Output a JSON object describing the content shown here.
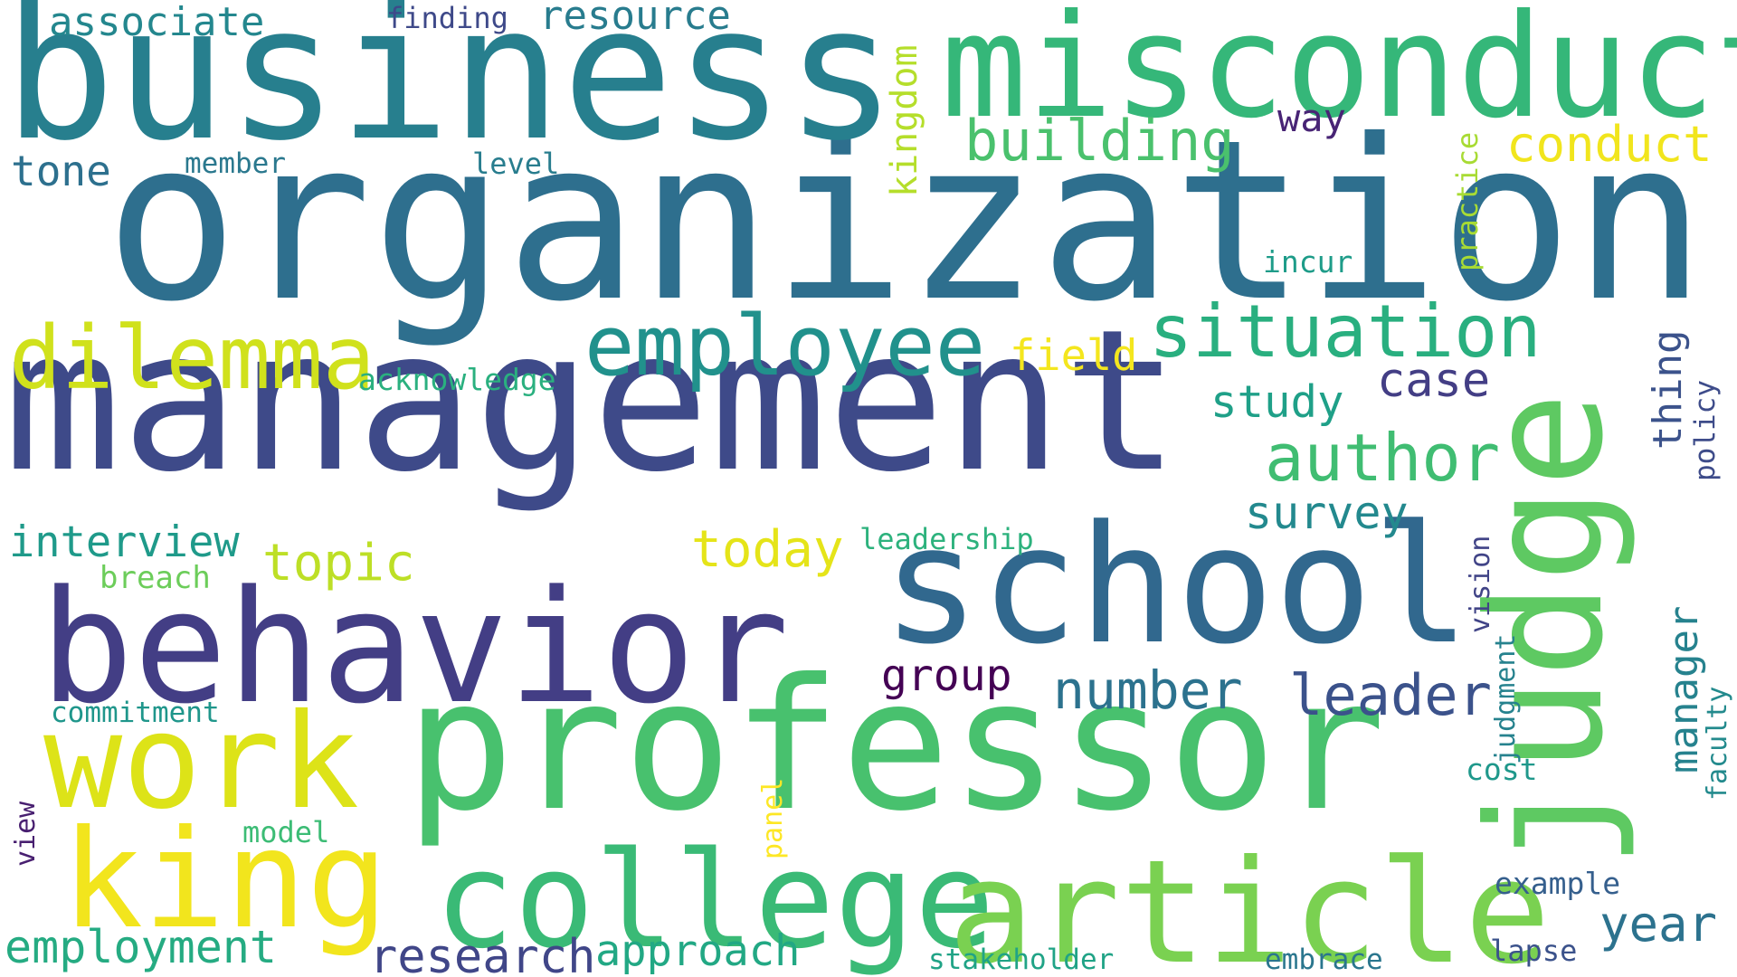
{
  "words": [
    {
      "text": "organization",
      "color": "#2e6f8e",
      "rotated": false
    },
    {
      "text": "management",
      "color": "#3e4a89",
      "rotated": false
    },
    {
      "text": "business",
      "color": "#277f8e",
      "rotated": false
    },
    {
      "text": "professor",
      "color": "#48c16e",
      "rotated": false
    },
    {
      "text": "misconduct",
      "color": "#35b779",
      "rotated": false
    },
    {
      "text": "school",
      "color": "#31688e",
      "rotated": false
    },
    {
      "text": "behavior",
      "color": "#433e85",
      "rotated": false
    },
    {
      "text": "judge",
      "color": "#5ec962",
      "rotated": true
    },
    {
      "text": "college",
      "color": "#3aba76",
      "rotated": false
    },
    {
      "text": "article",
      "color": "#7ad151",
      "rotated": false
    },
    {
      "text": "king",
      "color": "#f2e51d",
      "rotated": false
    },
    {
      "text": "work",
      "color": "#dde318",
      "rotated": false
    },
    {
      "text": "dilemma",
      "color": "#d0e11c",
      "rotated": false
    },
    {
      "text": "employee",
      "color": "#21918c",
      "rotated": false
    },
    {
      "text": "situation",
      "color": "#29af7f",
      "rotated": false
    },
    {
      "text": "author",
      "color": "#40bd72",
      "rotated": false
    },
    {
      "text": "building",
      "color": "#4ac16d",
      "rotated": false
    },
    {
      "text": "conduct",
      "color": "#f1e51d",
      "rotated": false
    },
    {
      "text": "number",
      "color": "#2c728e",
      "rotated": false
    },
    {
      "text": "leader",
      "color": "#3b528b",
      "rotated": false
    },
    {
      "text": "research",
      "color": "#404688",
      "rotated": false
    },
    {
      "text": "approach",
      "color": "#22a884",
      "rotated": false
    },
    {
      "text": "employment",
      "color": "#25ab82",
      "rotated": false
    },
    {
      "text": "year",
      "color": "#2c728e",
      "rotated": false
    },
    {
      "text": "case",
      "color": "#433e85",
      "rotated": false
    },
    {
      "text": "study",
      "color": "#1fa088",
      "rotated": false
    },
    {
      "text": "today",
      "color": "#e5e419",
      "rotated": false
    },
    {
      "text": "topic",
      "color": "#bddf26",
      "rotated": false
    },
    {
      "text": "interview",
      "color": "#1f9a8a",
      "rotated": false
    },
    {
      "text": "survey",
      "color": "#23898e",
      "rotated": false
    },
    {
      "text": "group",
      "color": "#440154",
      "rotated": false
    },
    {
      "text": "resource",
      "color": "#287c8e",
      "rotated": false
    },
    {
      "text": "associate",
      "color": "#24878e",
      "rotated": false
    },
    {
      "text": "tone",
      "color": "#2d708e",
      "rotated": false
    },
    {
      "text": "field",
      "color": "#f4e61e",
      "rotated": false
    },
    {
      "text": "kingdom",
      "color": "#b5de2b",
      "rotated": true
    },
    {
      "text": "thing",
      "color": "#3b528b",
      "rotated": true
    },
    {
      "text": "manager",
      "color": "#26828e",
      "rotated": true
    },
    {
      "text": "way",
      "color": "#482475",
      "rotated": false
    },
    {
      "text": "finding",
      "color": "#3e4989",
      "rotated": false
    },
    {
      "text": "member",
      "color": "#2a788e",
      "rotated": false
    },
    {
      "text": "level",
      "color": "#287d8e",
      "rotated": false
    },
    {
      "text": "acknowledge",
      "color": "#2ab07f",
      "rotated": false
    },
    {
      "text": "incur",
      "color": "#1e9c89",
      "rotated": false
    },
    {
      "text": "practice",
      "color": "#a8db34",
      "rotated": true
    },
    {
      "text": "policy",
      "color": "#3e4c8a",
      "rotated": true
    },
    {
      "text": "leadership",
      "color": "#2db27d",
      "rotated": false
    },
    {
      "text": "breach",
      "color": "#6ccd5a",
      "rotated": false
    },
    {
      "text": "vision",
      "color": "#414487",
      "rotated": true
    },
    {
      "text": "judgment",
      "color": "#26828e",
      "rotated": true
    },
    {
      "text": "faculty",
      "color": "#238a8d",
      "rotated": true
    },
    {
      "text": "commitment",
      "color": "#1f968b",
      "rotated": false
    },
    {
      "text": "cost",
      "color": "#1f988b",
      "rotated": false
    },
    {
      "text": "model",
      "color": "#3cbc75",
      "rotated": false
    },
    {
      "text": "panel",
      "color": "#fde725",
      "rotated": true
    },
    {
      "text": "view",
      "color": "#481f70",
      "rotated": true
    },
    {
      "text": "example",
      "color": "#355f8d",
      "rotated": false
    },
    {
      "text": "stakeholder",
      "color": "#20a386",
      "rotated": false
    },
    {
      "text": "embrace",
      "color": "#2a768e",
      "rotated": false
    },
    {
      "text": "lapse",
      "color": "#3b528b",
      "rotated": false
    }
  ]
}
